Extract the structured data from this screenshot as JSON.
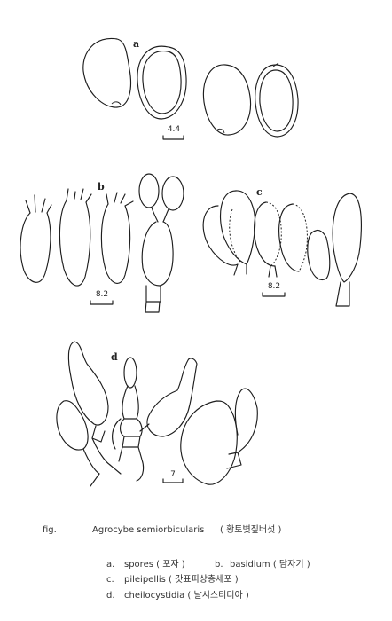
{
  "plate": {
    "labels": {
      "a": "a",
      "b": "b",
      "c": "c",
      "d": "d"
    },
    "scales": {
      "a": "4.4",
      "b": "8.2",
      "c": "8.2",
      "d": "7"
    }
  },
  "caption": {
    "fig_label": "fig.",
    "species": "Agrocybe semiorbicularis",
    "korean_name": "( 황토볏짚버섯 )",
    "items": [
      {
        "letter": "a.",
        "text": "spores ( 포자 )"
      },
      {
        "letter": "b.",
        "text": "basidium ( 담자기 )"
      },
      {
        "letter": "c.",
        "text": "pileipellis ( 갓표피상층세포 )"
      },
      {
        "letter": "d.",
        "text": "cheilocystidia ( 날시스티디아 )"
      }
    ]
  }
}
